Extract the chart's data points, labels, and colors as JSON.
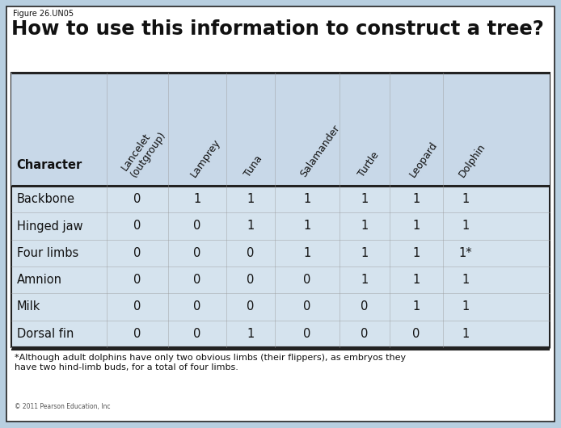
{
  "figure_label": "Figure 26.UN05",
  "title": "How to use this information to construct a tree?",
  "columns": [
    "Character",
    "Lancelet\n(outgroup)",
    "Lamprey",
    "Tuna",
    "Salamander",
    "Turtle",
    "Leopard",
    "Dolphin"
  ],
  "rows": [
    [
      "Backbone",
      "0",
      "1",
      "1",
      "1",
      "1",
      "1",
      "1"
    ],
    [
      "Hinged jaw",
      "0",
      "0",
      "1",
      "1",
      "1",
      "1",
      "1"
    ],
    [
      "Four limbs",
      "0",
      "0",
      "0",
      "1",
      "1",
      "1",
      "1*"
    ],
    [
      "Amnion",
      "0",
      "0",
      "0",
      "0",
      "1",
      "1",
      "1"
    ],
    [
      "Milk",
      "0",
      "0",
      "0",
      "0",
      "0",
      "1",
      "1"
    ],
    [
      "Dorsal fin",
      "0",
      "0",
      "1",
      "0",
      "0",
      "0",
      "1"
    ]
  ],
  "footnote": "*Although adult dolphins have only two obvious limbs (their flippers), as embryos they\nhave two hind-limb buds, for a total of four limbs.",
  "copyright": "© 2011 Pearson Education, Inc",
  "bg_color": "#b8cfe0",
  "table_bg": "#d5e3ee",
  "header_bg": "#c8d8e8",
  "white": "#ffffff",
  "text_color": "#111111",
  "border_color": "#222222",
  "light_line": "#999999"
}
